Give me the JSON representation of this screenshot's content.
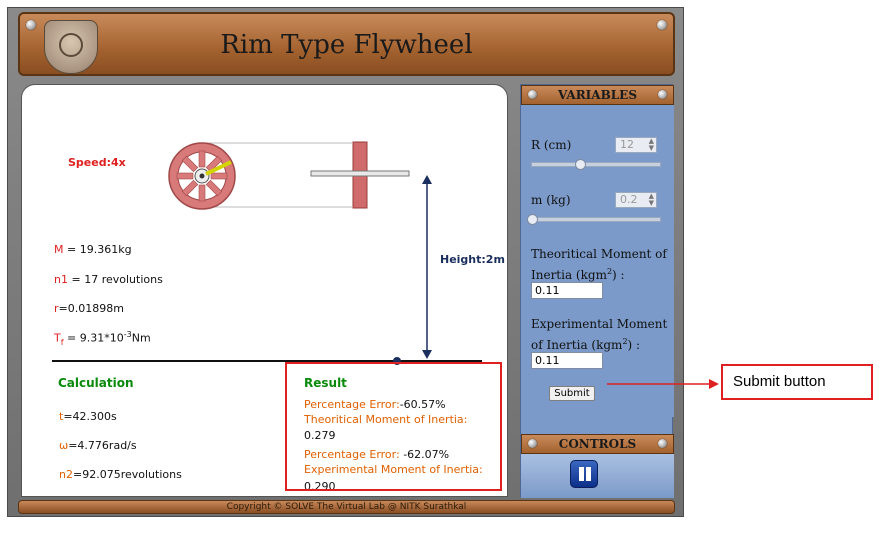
{
  "title": "Rim Type Flywheel",
  "speed": "Speed:4x",
  "params": {
    "M_label": "M",
    "M_value": " = 19.361kg",
    "n1_label": "n1",
    "n1_value": " = 17 revolutions",
    "r_label": "r",
    "r_value": "=0.01898m",
    "Tf_label": "T",
    "Tf_sub": "f",
    "Tf_value": " = 9.31*10",
    "Tf_exp": "-3",
    "Tf_unit": "Nm"
  },
  "height_label": "Height:2m",
  "calculation": {
    "heading": "Calculation",
    "t_label": "t",
    "t_value": "=42.300s",
    "w_label": "ω",
    "w_value": "=4.776rad/s",
    "n2_label": "n2",
    "n2_value": "=92.075revolutions"
  },
  "result": {
    "heading": "Result",
    "pe1": "Percentage Error:",
    "pe1_value": "-60.57%",
    "tmi_label": "Theoritical Moment of Inertia:",
    "tmi_value": "0.279",
    "pe2": "Percentage Error:",
    "pe2_value": " -62.07%",
    "emi_label": "Experimental Moment of Inertia:",
    "emi_value": "0.290"
  },
  "variables": {
    "heading": "VARIABLES",
    "r_label": "R (cm)",
    "r_value": "12",
    "m_label": "m (kg)",
    "m_value": "0.2",
    "r_slider_level": 0.42,
    "m_slider_level": 0.0,
    "theo_label_1": "Theoritical Moment of",
    "theo_label_2": "Inertia (kgm",
    "theo_exp": "2",
    "theo_label_3": ") :",
    "theo_value": "0.11",
    "exp_label_1": "Experimental Moment",
    "exp_label_2": "of Inertia (kgm",
    "exp_exp": "2",
    "exp_label_3": ") :",
    "exp_value": "0.11",
    "submit": "Submit"
  },
  "controls": {
    "heading": "CONTROLS"
  },
  "footer": "Copyright © SOLVE The Virtual Lab @ NITK Surathkal",
  "annotation": "Submit button",
  "colors": {
    "accent_red": "#e02020",
    "orange": "#e06000",
    "green": "#0a8a0a",
    "panel_blue": "#7b9ac9",
    "bronze": "#a3622f"
  }
}
